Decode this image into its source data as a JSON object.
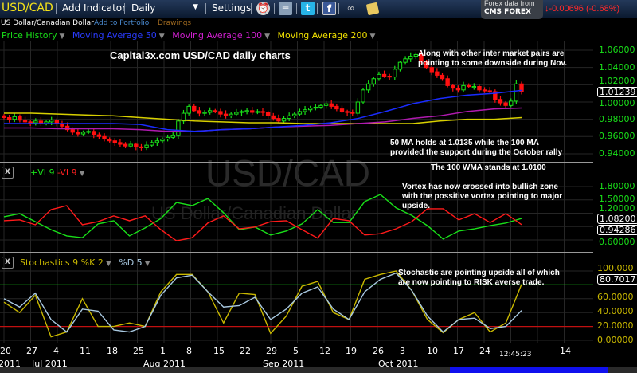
{
  "toolbar": {
    "symbol": "USD/CAD",
    "add_indicator": "Add Indicator",
    "period": "Daily",
    "settings": "Settings",
    "icons": [
      "alarm-clock-icon",
      "database-icon",
      "twitter-icon",
      "facebook-icon",
      "binoculars-icon",
      "sticky-note-icon"
    ],
    "provider_line1": "Forex data from",
    "provider_line2": "CMS FOREX",
    "change": "-0.00696 (-0.68%)",
    "change_color": "#ff2a2a"
  },
  "subbar": {
    "instrument": "US Dollar/Canadian Dollar",
    "add_portfolio": "Add to Portfolio",
    "drawings": "Drawings"
  },
  "legend": {
    "price": "Price History",
    "ma50": "Moving Average 50",
    "ma100": "Moving Average 100",
    "ma200": "Moving Average 200",
    "vi_plus": "+VI 9",
    "vi_minus": "-VI 9",
    "stoch_k": "Stochastics 9 %K 2",
    "stoch_d": "%D 5"
  },
  "watermark": {
    "symbol": "USD/CAD",
    "name": "US Dollar/Canadian Dollar"
  },
  "annotations": {
    "title": "Capital3x.com USD/CAD daily charts",
    "note1a": "Along with other inter market pairs are",
    "note1b": "pointing to some downside during Nov.",
    "note2a": "50 MA holds at 1.0135 while the 100 MA",
    "note2b": "provided the support during the October rally",
    "note3": "The 100 WMA stands at 1.0100",
    "note4a": "Vortex has now crossed into bullish zone",
    "note4b": "with the possitive vortex pointing to major",
    "note4c": "upside.",
    "note5a": "Stochastic are pointing upside all of which",
    "note5b": "are now pointing to RISK averse trade."
  },
  "axes": {
    "price_ticks": [
      "1.06000",
      "1.04000",
      "1.02000",
      "1.00000",
      "0.98000",
      "0.96000",
      "0.94000"
    ],
    "price_current": "1.01239",
    "vi_ticks": [
      "1.80000",
      "1.50000",
      "1.20000",
      "0.60000"
    ],
    "vi_current_plus": "1.08200",
    "vi_current_minus": "0.94286",
    "stoch_ticks": [
      "100.000",
      "60.0000",
      "40.0000",
      "20.0000",
      "0.00000"
    ],
    "stoch_current": "80.7017",
    "x_days": [
      "20",
      "27",
      "4",
      "11",
      "18",
      "25",
      "1",
      "8",
      "15",
      "22",
      "29",
      "5",
      "12",
      "19",
      "26",
      "3",
      "10",
      "17",
      "24",
      "14"
    ],
    "x_months": [
      "2011",
      "Jul 2011",
      "Aug 2011",
      "Sep 2011",
      "Oct 2011"
    ],
    "clock": "12:45:23"
  },
  "chart_data": [
    {
      "type": "candlestick",
      "ylim": [
        0.93,
        1.07
      ],
      "colors": {
        "up": "#19e019",
        "down": "#ff1010",
        "ma50": "#1a2cff",
        "ma100": "#b01ab0",
        "ma200": "#d8d000"
      },
      "closes": [
        0.982,
        0.98,
        0.983,
        0.979,
        0.977,
        0.976,
        0.978,
        0.975,
        0.977,
        0.979,
        0.975,
        0.972,
        0.968,
        0.965,
        0.963,
        0.965,
        0.966,
        0.962,
        0.96,
        0.957,
        0.955,
        0.953,
        0.951,
        0.949,
        0.951,
        0.948,
        0.947,
        0.95,
        0.953,
        0.955,
        0.957,
        0.959,
        0.961,
        0.978,
        0.987,
        0.995,
        0.99,
        0.987,
        0.988,
        0.99,
        0.989,
        0.986,
        0.984,
        0.986,
        0.988,
        0.989,
        0.99,
        0.988,
        0.989,
        0.988,
        0.984,
        0.981,
        0.978,
        0.981,
        0.984,
        0.986,
        0.989,
        0.991,
        0.993,
        0.994,
        0.996,
        0.998,
        0.995,
        0.992,
        0.989,
        0.988,
        0.987,
        1.0,
        1.014,
        1.021,
        1.027,
        1.032,
        1.03,
        1.029,
        1.038,
        1.046,
        1.05,
        1.053,
        1.055,
        1.047,
        1.04,
        1.035,
        1.031,
        1.027,
        1.019,
        1.016,
        1.014,
        1.019,
        1.018,
        1.018,
        1.014,
        1.013,
        1.012,
        1.003,
        0.999,
        0.996,
        1.001,
        1.021,
        1.012
      ],
      "ma_dates": [
        "Jun 20",
        "Jun 27",
        "Jul 4",
        "Jul 11",
        "Jul 18",
        "Jul 25",
        "Aug 1",
        "Aug 8",
        "Aug 15",
        "Aug 22",
        "Aug 29",
        "Sep 5",
        "Sep 12",
        "Sep 19",
        "Sep 26",
        "Oct 3",
        "Oct 10",
        "Oct 17",
        "Oct 24",
        "Oct 31"
      ],
      "ma50": [
        0.975,
        0.975,
        0.975,
        0.975,
        0.975,
        0.974,
        0.968,
        0.966,
        0.968,
        0.969,
        0.971,
        0.973,
        0.976,
        0.981,
        0.989,
        0.998,
        1.004,
        1.008,
        1.01,
        1.0135
      ],
      "ma100": [
        0.97,
        0.97,
        0.969,
        0.969,
        0.969,
        0.968,
        0.966,
        0.966,
        0.968,
        0.969,
        0.971,
        0.972,
        0.973,
        0.975,
        0.977,
        0.981,
        0.984,
        0.989,
        0.992,
        0.993
      ],
      "ma200": [
        0.987,
        0.987,
        0.986,
        0.985,
        0.984,
        0.982,
        0.98,
        0.978,
        0.977,
        0.976,
        0.976,
        0.975,
        0.975,
        0.975,
        0.975,
        0.975,
        0.978,
        0.98,
        0.98,
        0.982
      ]
    },
    {
      "type": "line",
      "ylim": [
        0.45,
        1.95
      ],
      "series": [
        {
          "name": "+VI 9",
          "color": "#19e019",
          "values": [
            1.12,
            1.19,
            1.01,
            0.83,
            0.69,
            0.65,
            0.96,
            1.03,
            0.69,
            0.87,
            1.08,
            1.44,
            1.37,
            1.53,
            1.21,
            0.83,
            0.89,
            0.71,
            0.8,
            0.96,
            1.28,
            0.99,
            0.99,
            1.46,
            1.62,
            1.32,
            1.15,
            0.92,
            0.62,
            0.8,
            0.85,
            0.92,
            0.98,
            1.082
          ]
        },
        {
          "name": "-VI 9",
          "color": "#ff1a1a",
          "values": [
            1.03,
            1.05,
            0.94,
            1.28,
            1.37,
            0.94,
            1.01,
            1.14,
            1.03,
            1.14,
            0.83,
            0.58,
            0.65,
            0.98,
            1.14,
            0.85,
            0.89,
            1.01,
            1.03,
            0.83,
            0.64,
            1.08,
            1.03,
            0.71,
            0.74,
            0.85,
            1.01,
            1.3,
            1.3,
            1.05,
            1.19,
            0.99,
            1.19,
            0.943
          ]
        }
      ]
    },
    {
      "type": "line",
      "ylim": [
        0,
        100
      ],
      "levels": [
        {
          "value": 80,
          "color": "#19c019"
        },
        {
          "value": 20,
          "color": "#c01010"
        }
      ],
      "series": [
        {
          "name": "Stochastics 9 %K 2",
          "color": "#c9b800",
          "values": [
            55,
            40,
            65,
            5,
            12,
            60,
            20,
            20,
            25,
            20,
            70,
            95,
            95,
            70,
            25,
            68,
            66,
            10,
            35,
            78,
            85,
            40,
            30,
            88,
            95,
            100,
            72,
            30,
            11,
            30,
            40,
            12,
            25,
            80.7017
          ]
        },
        {
          "name": "%D 5",
          "color": "#a8c8e0",
          "values": [
            60,
            48,
            68,
            30,
            12,
            45,
            42,
            15,
            12,
            20,
            65,
            90,
            94,
            70,
            48,
            50,
            62,
            30,
            45,
            68,
            77,
            45,
            30,
            70,
            88,
            97,
            72,
            35,
            12,
            30,
            32,
            17,
            20,
            43
          ]
        }
      ]
    }
  ]
}
